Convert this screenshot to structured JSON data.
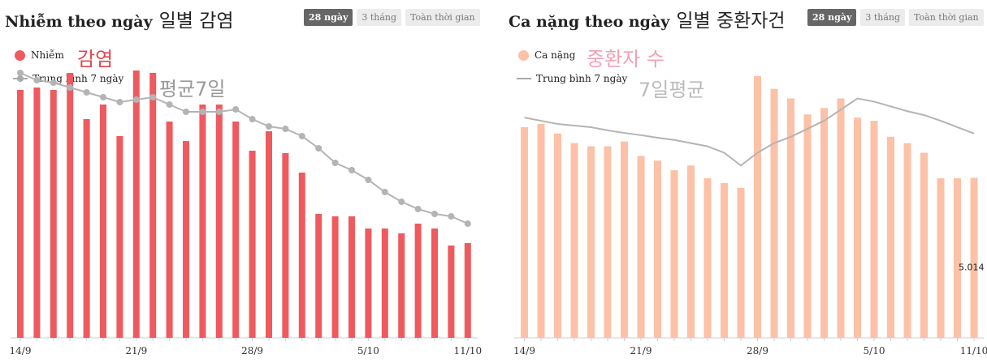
{
  "colors": {
    "infection": "#ef5a5f",
    "severe": "#fcc1a6",
    "avg_line": "#b4b4b4",
    "tab_active_bg": "#666666",
    "tab_bg": "#ececec"
  },
  "tabs": [
    "28 ngày",
    "3 tháng",
    "Toàn thời gian"
  ],
  "active_tab": "28 ngày",
  "left": {
    "title": "Nhiễm theo ngày",
    "title_ko": "일별 감염",
    "legend_bar": "Nhiễm",
    "legend_bar_ko": "감염",
    "legend_line": "Trung bình 7 ngày",
    "legend_line_ko": "평균7일"
  },
  "right": {
    "title": "Ca nặng theo ngày",
    "title_ko": "일별 중환자건",
    "legend_bar": "Ca nặng",
    "legend_bar_ko": "중환자 수",
    "legend_line": "Trung bình 7 ngày",
    "legend_line_ko": "7일평균",
    "last_value_label": "5.014"
  },
  "chart_data": [
    {
      "type": "bar",
      "title": "Nhiễm theo ngày",
      "x_tick_labels": [
        "14/9",
        "21/9",
        "28/9",
        "5/10",
        "11/10"
      ],
      "x_tick_index": [
        0,
        7,
        14,
        21,
        27
      ],
      "series": [
        {
          "name": "Nhiễm",
          "kind": "bar",
          "values": [
            10200,
            10300,
            10200,
            10900,
            9000,
            9600,
            8300,
            11000,
            10900,
            8900,
            8100,
            9600,
            9600,
            8900,
            7700,
            8500,
            7600,
            6800,
            5100,
            5000,
            5000,
            4500,
            4500,
            4300,
            4700,
            4500,
            3800,
            3900
          ]
        },
        {
          "name": "Trung bình 7 ngày",
          "kind": "line",
          "values": [
            10900,
            10600,
            10500,
            10300,
            10100,
            9900,
            9700,
            9800,
            9900,
            9600,
            9300,
            9300,
            9300,
            9400,
            9000,
            8700,
            8600,
            8300,
            7800,
            7200,
            6900,
            6500,
            6000,
            5600,
            5300,
            5100,
            5000,
            4700
          ]
        }
      ]
    },
    {
      "type": "bar",
      "title": "Ca nặng theo ngày",
      "x_tick_labels": [
        "14/9",
        "21/9",
        "28/9",
        "5/10",
        "11/10"
      ],
      "x_tick_index": [
        0,
        7,
        14,
        21,
        27
      ],
      "series": [
        {
          "name": "Ca nặng",
          "kind": "bar",
          "values": [
            6600,
            6700,
            6400,
            6100,
            6000,
            6000,
            6150,
            5700,
            5550,
            5250,
            5400,
            5000,
            4850,
            4700,
            8200,
            7800,
            7500,
            7000,
            7200,
            7500,
            6900,
            6800,
            6300,
            6100,
            5800,
            5000,
            5000,
            5014
          ]
        },
        {
          "name": "Trung bình 7 ngày",
          "kind": "line",
          "values": [
            6900,
            6800,
            6700,
            6650,
            6600,
            6500,
            6420,
            6350,
            6270,
            6200,
            6100,
            6000,
            5800,
            5400,
            5800,
            6100,
            6300,
            6550,
            6800,
            7150,
            7500,
            7400,
            7250,
            7100,
            6980,
            6800,
            6600,
            6400
          ]
        }
      ]
    }
  ]
}
